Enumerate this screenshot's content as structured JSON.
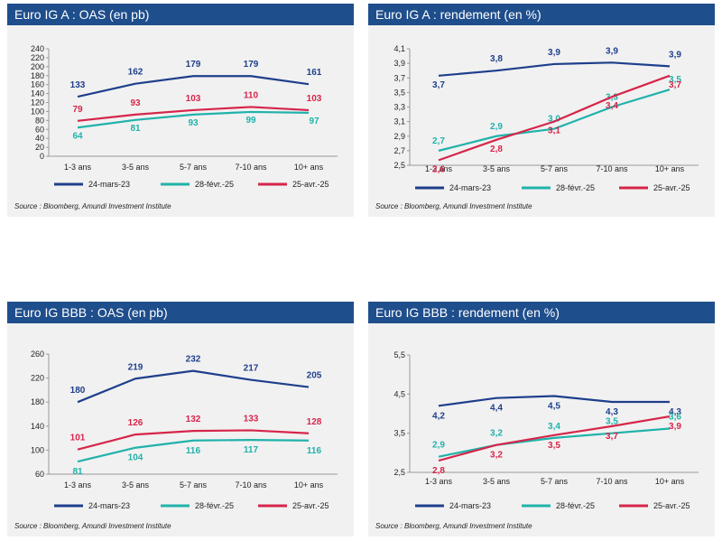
{
  "source": "Source : Bloomberg, Amundi Investment Institute",
  "colors": {
    "s1": "#1f3f8c",
    "s2": "#20b2aa",
    "s3": "#d6254a",
    "header": "#1f4e8c"
  },
  "series_names": [
    "24-mars-23",
    "28-févr.-25",
    "25-avr.-25"
  ],
  "chart_data": [
    {
      "type": "line",
      "title": "Euro IG A : OAS (en pb)",
      "categories": [
        "1-3 ans",
        "3-5 ans",
        "5-7 ans",
        "7-10 ans",
        "10+ ans"
      ],
      "ylim": [
        0,
        240
      ],
      "yticks": [
        0,
        20,
        40,
        60,
        80,
        100,
        120,
        140,
        160,
        180,
        200,
        220,
        240
      ],
      "ytick_labels": [
        "0",
        "20",
        "40",
        "60",
        "80",
        "100",
        "120",
        "140",
        "160",
        "180",
        "200",
        "220",
        "240"
      ],
      "grid": false,
      "series": [
        {
          "name": "24-mars-23",
          "values": [
            133,
            162,
            179,
            179,
            161
          ],
          "labels": [
            "133",
            "162",
            "179",
            "179",
            "161"
          ]
        },
        {
          "name": "28-févr.-25",
          "values": [
            64,
            81,
            93,
            99,
            97
          ],
          "labels": [
            "64",
            "81",
            "93",
            "99",
            "97"
          ]
        },
        {
          "name": "25-avr.-25",
          "values": [
            79,
            93,
            103,
            110,
            103
          ],
          "labels": [
            "79",
            "93",
            "103",
            "110",
            "103"
          ]
        }
      ]
    },
    {
      "type": "line",
      "title": "Euro IG A : rendement (en %)",
      "categories": [
        "1-3 ans",
        "3-5 ans",
        "5-7 ans",
        "7-10 ans",
        "10+ ans"
      ],
      "ylim": [
        2.5,
        4.1
      ],
      "yticks": [
        2.5,
        2.7,
        2.9,
        3.1,
        3.3,
        3.5,
        3.7,
        3.9,
        4.1
      ],
      "ytick_labels": [
        "2,5",
        "2,7",
        "2,9",
        "3,1",
        "3,3",
        "3,5",
        "3,7",
        "3,9",
        "4,1"
      ],
      "grid": false,
      "series": [
        {
          "name": "24-mars-23",
          "values": [
            3.73,
            3.8,
            3.89,
            3.91,
            3.86
          ],
          "labels": [
            "3,7",
            "3,8",
            "3,9",
            "3,9",
            "3,9"
          ]
        },
        {
          "name": "28-févr.-25",
          "values": [
            2.7,
            2.9,
            3.0,
            3.3,
            3.54
          ],
          "labels": [
            "2,7",
            "2,9",
            "3,0",
            "3,3",
            "3,5"
          ]
        },
        {
          "name": "25-avr.-25",
          "values": [
            2.57,
            2.85,
            3.1,
            3.44,
            3.73
          ],
          "labels": [
            "2,6",
            "2,8",
            "3,1",
            "3,4",
            "3,7"
          ]
        }
      ]
    },
    {
      "type": "line",
      "title": "Euro IG BBB :  OAS (en pb)",
      "categories": [
        "1-3 ans",
        "3-5 ans",
        "5-7 ans",
        "7-10 ans",
        "10+ ans"
      ],
      "ylim": [
        60,
        260
      ],
      "yticks": [
        60,
        100,
        140,
        180,
        220,
        260
      ],
      "ytick_labels": [
        "60",
        "100",
        "140",
        "180",
        "220",
        "260"
      ],
      "grid": false,
      "series": [
        {
          "name": "24-mars-23",
          "values": [
            180,
            219,
            232,
            217,
            205
          ],
          "labels": [
            "180",
            "219",
            "232",
            "217",
            "205"
          ]
        },
        {
          "name": "28-févr.-25",
          "values": [
            81,
            104,
            116,
            117,
            116
          ],
          "labels": [
            "81",
            "104",
            "116",
            "117",
            "116"
          ]
        },
        {
          "name": "25-avr.-25",
          "values": [
            101,
            126,
            132,
            133,
            128
          ],
          "labels": [
            "101",
            "126",
            "132",
            "133",
            "128"
          ]
        }
      ]
    },
    {
      "type": "line",
      "title": "Euro IG BBB :  rendement  (en %)",
      "categories": [
        "1-3 ans",
        "3-5 ans",
        "5-7 ans",
        "7-10 ans",
        "10+ ans"
      ],
      "ylim": [
        2.5,
        5.5
      ],
      "yticks": [
        2.5,
        3.5,
        4.5,
        5.5
      ],
      "ytick_labels": [
        "2,5",
        "3,5",
        "4,5",
        "5,5"
      ],
      "grid": false,
      "series": [
        {
          "name": "24-mars-23",
          "values": [
            4.2,
            4.4,
            4.45,
            4.3,
            4.3
          ],
          "labels": [
            "4,2",
            "4,4",
            "4,5",
            "4,3",
            "4,3"
          ]
        },
        {
          "name": "28-févr.-25",
          "values": [
            2.9,
            3.2,
            3.38,
            3.5,
            3.62
          ],
          "labels": [
            "2,9",
            "3,2",
            "3,4",
            "3,5",
            "3,6"
          ]
        },
        {
          "name": "25-avr.-25",
          "values": [
            2.8,
            3.2,
            3.45,
            3.68,
            3.93
          ],
          "labels": [
            "2,8",
            "3,2",
            "3,5",
            "3,7",
            "3,9"
          ]
        }
      ]
    }
  ]
}
